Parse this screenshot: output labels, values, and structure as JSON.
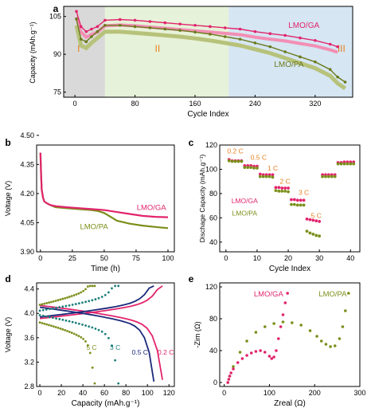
{
  "colors": {
    "pink": "#e2246c",
    "pink_light": "#f28fb4",
    "olive": "#6b7a1c",
    "olive_light": "#b7c27a",
    "green": "#7a8f1a",
    "teal": "#1b7f7a",
    "navy": "#1b2a7a",
    "orange": "#e8801e",
    "region1": "#d9d9d9",
    "region2": "#e6f2d9",
    "region3": "#d6e6f3"
  },
  "chart_data": [
    {
      "panel": "a",
      "type": "scatter",
      "xlabel": "Cycle Index",
      "ylabel": "Capacity (mAh.g⁻¹)",
      "xlim": [
        -15,
        370
      ],
      "ylim": [
        73,
        109
      ],
      "xticks": [
        0,
        80,
        160,
        240,
        320
      ],
      "yticks": [
        75,
        90,
        105
      ],
      "regions": [
        {
          "label": "I",
          "x": [
            -15,
            40
          ]
        },
        {
          "label": "II",
          "x": [
            40,
            205
          ]
        },
        {
          "label": "III",
          "x": [
            205,
            370
          ]
        }
      ],
      "series": [
        {
          "name": "LMO/GA",
          "x": [
            2,
            8,
            15,
            22,
            30,
            40,
            60,
            80,
            100,
            120,
            140,
            160,
            180,
            200,
            220,
            240,
            260,
            280,
            300,
            320,
            340,
            350
          ],
          "y": [
            107,
            101,
            99,
            100,
            101,
            103.5,
            103.8,
            103.5,
            103,
            102.5,
            102,
            101.5,
            101,
            100.5,
            100,
            99,
            98.2,
            97.5,
            96.5,
            95.5,
            94,
            93
          ]
        },
        {
          "name": "LMO/PA",
          "x": [
            2,
            8,
            15,
            22,
            30,
            40,
            60,
            80,
            100,
            120,
            140,
            160,
            180,
            200,
            220,
            240,
            260,
            280,
            300,
            320,
            340,
            350,
            360
          ],
          "y": [
            104,
            96,
            95,
            97,
            99,
            101.5,
            101.5,
            101,
            100.5,
            100,
            99.5,
            98.8,
            98,
            97,
            96,
            94.5,
            93,
            91,
            89,
            87,
            84,
            81,
            79
          ]
        }
      ]
    },
    {
      "panel": "b",
      "type": "line",
      "xlabel": "Time (h)",
      "ylabel": "Voltage (V)",
      "xlim": [
        -3,
        105
      ],
      "ylim": [
        3.9,
        4.45
      ],
      "xticks": [
        0,
        25,
        50,
        75,
        100
      ],
      "yticks": [
        3.9,
        4.05,
        4.2,
        4.35,
        4.5
      ],
      "series": [
        {
          "name": "LMO/GA",
          "x": [
            0,
            0.5,
            1,
            2,
            3,
            5,
            8,
            12,
            20,
            30,
            40,
            50,
            60,
            70,
            80,
            90,
            100
          ],
          "y": [
            4.41,
            4.3,
            4.22,
            4.18,
            4.16,
            4.15,
            4.14,
            4.135,
            4.13,
            4.125,
            4.12,
            4.115,
            4.105,
            4.095,
            4.085,
            4.08,
            4.078
          ]
        },
        {
          "name": "LMO/PA",
          "x": [
            0,
            0.5,
            1,
            2,
            3,
            5,
            8,
            12,
            20,
            30,
            40,
            45,
            50,
            55,
            60,
            70,
            80,
            90,
            100
          ],
          "y": [
            4.41,
            4.3,
            4.22,
            4.18,
            4.16,
            4.15,
            4.14,
            4.13,
            4.125,
            4.12,
            4.115,
            4.11,
            4.1,
            4.08,
            4.06,
            4.045,
            4.035,
            4.028,
            4.022
          ]
        }
      ]
    },
    {
      "panel": "c",
      "type": "scatter",
      "xlabel": "Cycle Index",
      "ylabel": "Dischage Capacity (mAh.g⁻¹)",
      "xlim": [
        -2,
        43
      ],
      "ylim": [
        32,
        120
      ],
      "xticks": [
        0,
        10,
        20,
        30,
        40
      ],
      "yticks": [
        40,
        60,
        80,
        100,
        120
      ],
      "annotations": [
        "0.2 C",
        "0.5 C",
        "1 C",
        "2 C",
        "3 C",
        "5 C"
      ],
      "series": [
        {
          "name": "LMO/GA",
          "x": [
            1,
            2,
            3,
            4,
            5,
            6,
            7,
            8,
            9,
            10,
            11,
            12,
            13,
            14,
            15,
            16,
            17,
            18,
            19,
            20,
            21,
            22,
            23,
            24,
            25,
            26,
            27,
            28,
            29,
            30,
            31,
            32,
            33,
            34,
            35,
            36,
            37,
            38,
            39,
            40,
            41
          ],
          "y": [
            108,
            107,
            107,
            107,
            107,
            103,
            103,
            103,
            102.5,
            102.5,
            96,
            95.5,
            95.5,
            95.5,
            95.5,
            85,
            85,
            84.5,
            84.5,
            84.5,
            75,
            75,
            74.5,
            74.5,
            74.5,
            59,
            58.5,
            58,
            57.5,
            57,
            95.5,
            95.5,
            95.5,
            95.5,
            95.5,
            105.5,
            105.5,
            106,
            106,
            106,
            106
          ]
        },
        {
          "name": "LMO/PA",
          "x": [
            1,
            2,
            3,
            4,
            5,
            6,
            7,
            8,
            9,
            10,
            11,
            12,
            13,
            14,
            15,
            16,
            17,
            18,
            19,
            20,
            21,
            22,
            23,
            24,
            25,
            26,
            27,
            28,
            29,
            30,
            31,
            32,
            33,
            34,
            35,
            36,
            37,
            38,
            39,
            40,
            41
          ],
          "y": [
            107,
            106.5,
            106.5,
            106.5,
            106.5,
            101.5,
            101.5,
            101.5,
            101,
            101,
            94,
            94,
            94,
            94,
            93.5,
            82.5,
            82,
            82,
            82,
            81.5,
            71,
            71,
            70.5,
            70.5,
            70.5,
            49,
            47.5,
            46.5,
            45.5,
            45,
            94,
            94,
            94,
            94,
            94,
            104.5,
            104.5,
            104.5,
            104.5,
            104.5,
            104.5
          ]
        }
      ]
    },
    {
      "panel": "d",
      "type": "line",
      "xlabel": "Capacity (mAh.g⁻¹)",
      "ylabel": "Voltage (V)",
      "xlim": [
        -3,
        125
      ],
      "ylim": [
        2.8,
        4.5
      ],
      "xticks": [
        0,
        20,
        40,
        60,
        80,
        100,
        120
      ],
      "yticks": [
        2.8,
        3.2,
        3.6,
        4.0,
        4.4
      ],
      "series": [
        {
          "name": "0.2 C",
          "capacity": 114
        },
        {
          "name": "0.5 C",
          "capacity": 106
        },
        {
          "name": "3 C",
          "capacity": 73
        },
        {
          "name": "5 C",
          "capacity": 51
        }
      ]
    },
    {
      "panel": "e",
      "type": "scatter",
      "xlabel": "Zreal (Ω)",
      "ylabel": "-Zim (Ω)",
      "xlim": [
        -10,
        300
      ],
      "ylim": [
        -5,
        125
      ],
      "xticks": [
        0,
        100,
        200,
        300
      ],
      "yticks": [
        0,
        40,
        80,
        120
      ],
      "series": [
        {
          "name": "LMO/GA",
          "x": [
            8,
            10,
            12,
            15,
            20,
            30,
            40,
            50,
            60,
            70,
            80,
            90,
            100,
            105,
            110,
            115,
            120,
            125,
            130,
            135,
            140
          ],
          "y": [
            0,
            4,
            8,
            12,
            17,
            25,
            30,
            34,
            37,
            39,
            40,
            38,
            33,
            30,
            32,
            40,
            55,
            70,
            85,
            100,
            112
          ]
        },
        {
          "name": "LMO/PA",
          "x": [
            8,
            12,
            20,
            35,
            50,
            70,
            90,
            110,
            130,
            150,
            170,
            190,
            205,
            215,
            225,
            235,
            245,
            255,
            262,
            268,
            275
          ],
          "y": [
            0,
            8,
            20,
            38,
            52,
            63,
            70,
            74,
            76,
            75,
            72,
            65,
            58,
            52,
            48,
            45,
            46,
            55,
            70,
            90,
            112
          ]
        }
      ]
    }
  ]
}
